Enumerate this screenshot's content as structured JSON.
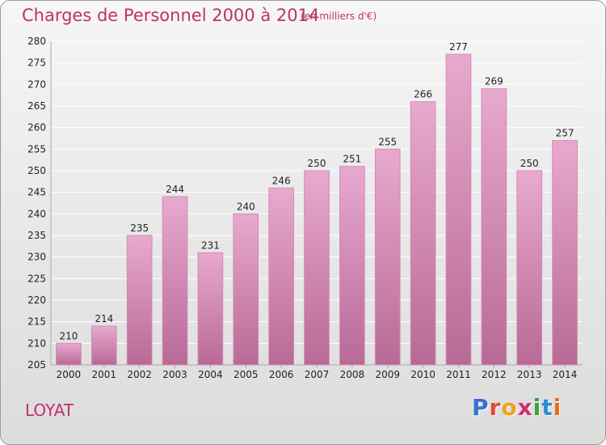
{
  "header": {
    "title": "Charges de Personnel 2000 à 2014",
    "subtitle": "(en milliers d'€)"
  },
  "footer": {
    "commune": "LOYAT",
    "logo": {
      "letters": [
        "P",
        "r",
        "o",
        "x",
        "i",
        "t",
        "i"
      ],
      "colors": [
        "#3a6fd0",
        "#e04a3a",
        "#f0a020",
        "#d03070",
        "#3aa040",
        "#2a8fd0",
        "#e07020"
      ]
    }
  },
  "colors": {
    "bar_top": "#e8a9cf",
    "bar_bottom": "#b86a96",
    "accent": "#c0306e"
  },
  "chart_data": {
    "type": "bar",
    "title": "Charges de Personnel 2000 à 2014",
    "subtitle": "(en milliers d'€)",
    "xlabel": "",
    "ylabel": "",
    "categories": [
      "2000",
      "2001",
      "2002",
      "2003",
      "2004",
      "2005",
      "2006",
      "2007",
      "2008",
      "2009",
      "2010",
      "2011",
      "2012",
      "2013",
      "2014"
    ],
    "values": [
      210,
      214,
      235,
      244,
      231,
      240,
      246,
      250,
      251,
      255,
      266,
      277,
      269,
      250,
      257
    ],
    "ylim": [
      205,
      280
    ],
    "yticks": [
      205,
      210,
      215,
      220,
      225,
      230,
      235,
      240,
      245,
      250,
      255,
      260,
      265,
      270,
      275,
      280
    ],
    "grid": true,
    "legend": "none"
  }
}
